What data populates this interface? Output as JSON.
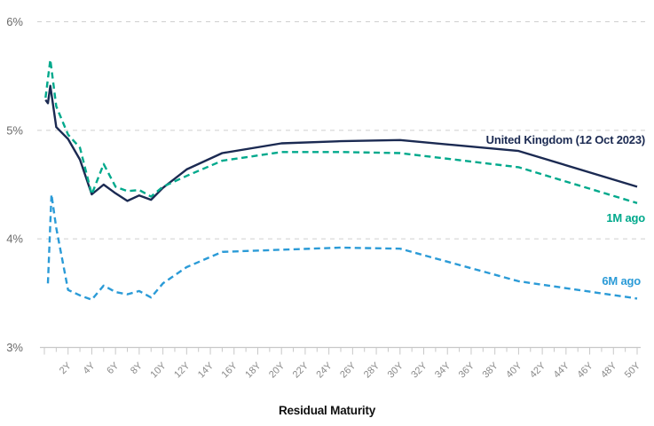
{
  "chart_data": {
    "type": "line",
    "title": "",
    "xlabel": "Residual Maturity",
    "ylabel": "",
    "xlim": [
      0,
      50.5
    ],
    "ylim": [
      3,
      6
    ],
    "grid": "horizontal-dashed",
    "legend_position": "inline-right",
    "x_axis": {
      "unit": "years",
      "minor_tick_step": 1,
      "label_step": 2,
      "tick_labels": [
        "2Y",
        "4Y",
        "6Y",
        "8Y",
        "10Y",
        "12Y",
        "14Y",
        "16Y",
        "18Y",
        "20Y",
        "22Y",
        "24Y",
        "26Y",
        "28Y",
        "30Y",
        "32Y",
        "34Y",
        "36Y",
        "38Y",
        "40Y",
        "42Y",
        "44Y",
        "46Y",
        "48Y",
        "50Y"
      ]
    },
    "y_axis": {
      "tick_labels": [
        "3%",
        "4%",
        "5%",
        "6%"
      ],
      "tick_values": [
        3,
        4,
        5,
        6
      ]
    },
    "series": [
      {
        "name": "united-kingdom-current",
        "label": "United Kingdom (12 Oct 2023)",
        "color": "#1b2a52",
        "style": "solid",
        "points": [
          [
            0.1,
            5.28
          ],
          [
            0.3,
            5.25
          ],
          [
            0.5,
            5.41
          ],
          [
            1,
            5.03
          ],
          [
            2,
            4.92
          ],
          [
            3,
            4.73
          ],
          [
            4,
            4.41
          ],
          [
            5,
            4.5
          ],
          [
            6,
            4.42
          ],
          [
            7,
            4.35
          ],
          [
            8,
            4.4
          ],
          [
            9,
            4.36
          ],
          [
            10,
            4.47
          ],
          [
            12,
            4.64
          ],
          [
            15,
            4.79
          ],
          [
            20,
            4.88
          ],
          [
            25,
            4.9
          ],
          [
            30,
            4.91
          ],
          [
            40,
            4.81
          ],
          [
            50,
            4.48
          ]
        ]
      },
      {
        "name": "one-month-ago",
        "label": "1M ago",
        "color": "#00a98c",
        "style": "dashed",
        "points": [
          [
            0.1,
            5.3
          ],
          [
            0.5,
            5.65
          ],
          [
            1,
            5.22
          ],
          [
            2,
            4.96
          ],
          [
            3,
            4.84
          ],
          [
            4,
            4.41
          ],
          [
            5,
            4.69
          ],
          [
            6,
            4.48
          ],
          [
            7,
            4.44
          ],
          [
            8,
            4.45
          ],
          [
            9,
            4.39
          ],
          [
            10,
            4.48
          ],
          [
            12,
            4.58
          ],
          [
            15,
            4.72
          ],
          [
            20,
            4.8
          ],
          [
            25,
            4.8
          ],
          [
            30,
            4.79
          ],
          [
            40,
            4.66
          ],
          [
            50,
            4.33
          ]
        ]
      },
      {
        "name": "six-months-ago",
        "label": "6M ago",
        "color": "#2b9bd7",
        "style": "dashed",
        "points": [
          [
            0.3,
            3.59
          ],
          [
            0.6,
            4.41
          ],
          [
            1,
            4.1
          ],
          [
            2,
            3.53
          ],
          [
            3,
            3.48
          ],
          [
            4,
            3.44
          ],
          [
            5,
            3.57
          ],
          [
            6,
            3.51
          ],
          [
            7,
            3.49
          ],
          [
            8,
            3.52
          ],
          [
            9,
            3.46
          ],
          [
            10,
            3.59
          ],
          [
            12,
            3.74
          ],
          [
            15,
            3.88
          ],
          [
            20,
            3.9
          ],
          [
            25,
            3.92
          ],
          [
            30,
            3.91
          ],
          [
            40,
            3.61
          ],
          [
            50,
            3.45
          ]
        ]
      }
    ]
  },
  "colors": {
    "background": "#ffffff",
    "gridline": "#cfcfcf",
    "axis_line": "#c8c8c8",
    "x_tick_label": "#8a8a8a",
    "y_tick_label": "#6b6b6b",
    "axis_title": "#101010"
  }
}
